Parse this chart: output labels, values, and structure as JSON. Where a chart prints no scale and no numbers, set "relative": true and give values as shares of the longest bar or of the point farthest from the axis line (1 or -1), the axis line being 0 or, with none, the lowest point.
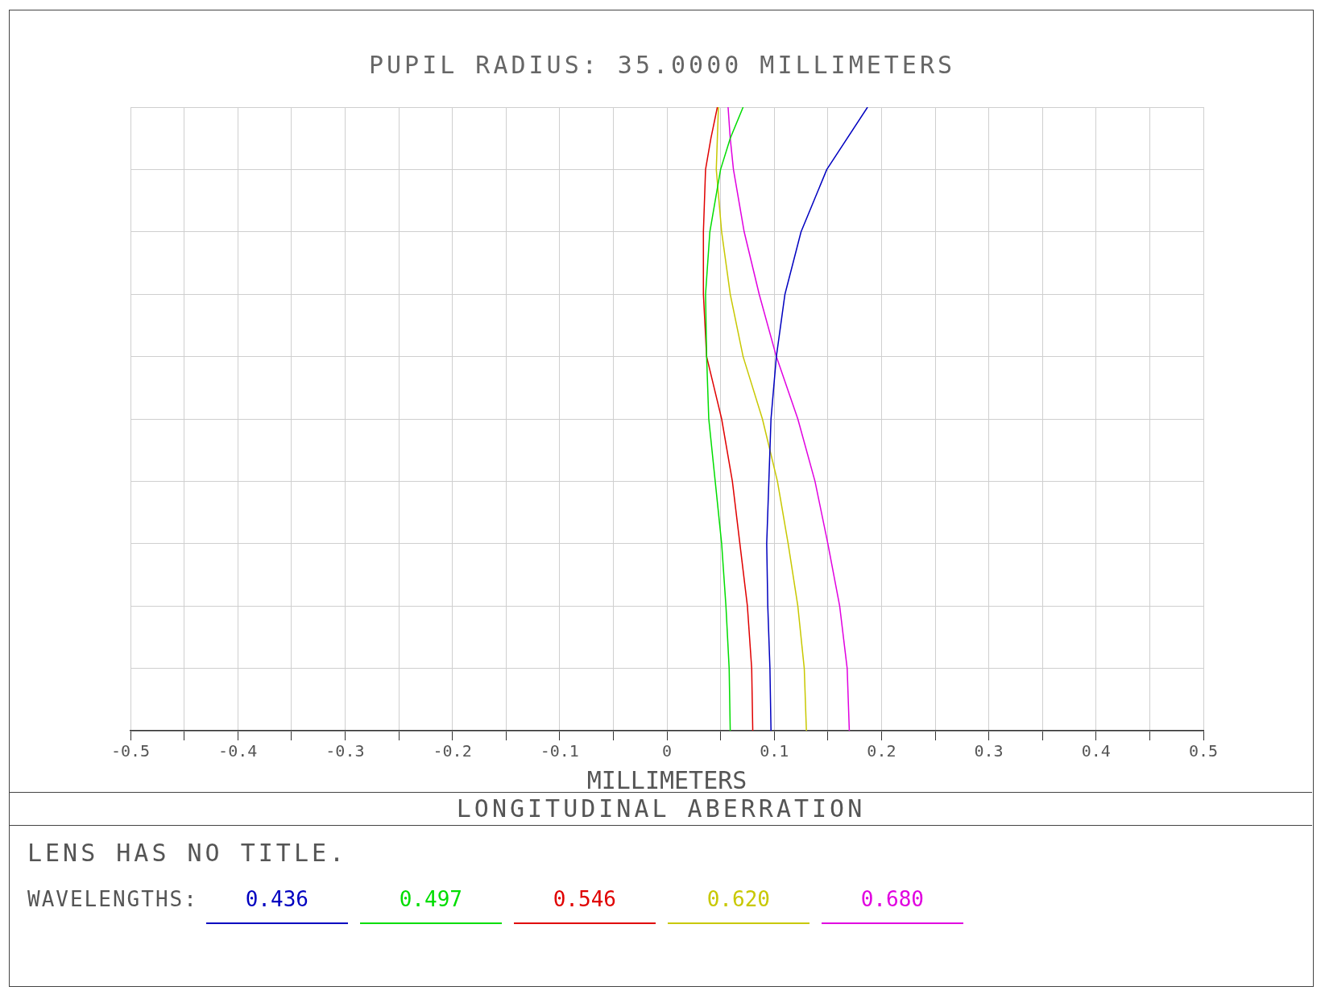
{
  "chart_data": {
    "type": "line",
    "title": "PUPIL RADIUS: 35.0000 MILLIMETERS",
    "xlabel": "MILLIMETERS",
    "relative": true,
    "xlim": [
      -0.5,
      0.5
    ],
    "xticks": [
      -0.5,
      {
        "value": -0.45,
        "label": null
      },
      -0.4,
      {
        "value": -0.35,
        "label": null
      },
      -0.3,
      {
        "value": -0.25,
        "label": null
      },
      -0.2,
      {
        "value": -0.15,
        "label": null
      },
      -0.1,
      {
        "value": -0.05,
        "label": null
      },
      0,
      {
        "value": 0.05,
        "label": null
      },
      0.1,
      {
        "value": 0.15,
        "label": null
      },
      0.2,
      {
        "value": 0.25,
        "label": null
      },
      0.3,
      {
        "value": 0.35,
        "label": null
      },
      0.4,
      {
        "value": 0.45,
        "label": null
      },
      0.5
    ],
    "grid": true,
    "legend": "bottom",
    "marker": "none",
    "line_style": "solid",
    "legend_title": "WAVELENGTHS:",
    "annotations": [
      "LONGITUDINAL ABERRATION",
      "LENS HAS NO TITLE."
    ],
    "series": [
      {
        "name": "0.436",
        "color": "#0000c0",
        "x": [
          0.097,
          0.096,
          0.094,
          0.093,
          0.095,
          0.097,
          0.102,
          0.11,
          0.125,
          0.149,
          0.187
        ],
        "values": [
          0,
          0.1,
          0.2,
          0.3,
          0.4,
          0.5,
          0.6,
          0.7,
          0.8,
          0.9,
          1
        ]
      },
      {
        "name": "0.497",
        "color": "#00dd00",
        "x": [
          0.059,
          0.058,
          0.055,
          0.051,
          0.045,
          0.039,
          0.037,
          0.036,
          0.04,
          0.05,
          0.059,
          0.071
        ],
        "values": [
          0,
          0.1,
          0.2,
          0.3,
          0.4,
          0.5,
          0.6,
          0.7,
          0.8,
          0.9,
          0.95,
          1
        ]
      },
      {
        "name": "0.546",
        "color": "#e00000",
        "x": [
          0.08,
          0.079,
          0.075,
          0.068,
          0.061,
          0.051,
          0.037,
          0.034,
          0.034,
          0.036,
          0.041,
          0.047
        ],
        "values": [
          0,
          0.1,
          0.2,
          0.3,
          0.4,
          0.5,
          0.6,
          0.7,
          0.8,
          0.9,
          0.95,
          1
        ]
      },
      {
        "name": "0.620",
        "color": "#c8c800",
        "x": [
          0.13,
          0.128,
          0.122,
          0.113,
          0.103,
          0.089,
          0.071,
          0.059,
          0.051,
          0.046,
          0.048
        ],
        "values": [
          0,
          0.1,
          0.2,
          0.3,
          0.4,
          0.5,
          0.6,
          0.7,
          0.8,
          0.9,
          1
        ]
      },
      {
        "name": "0.680",
        "color": "#e000e0",
        "x": [
          0.17,
          0.168,
          0.161,
          0.15,
          0.138,
          0.122,
          0.102,
          0.086,
          0.072,
          0.062,
          0.059,
          0.057
        ],
        "values": [
          0,
          0.1,
          0.2,
          0.3,
          0.4,
          0.5,
          0.6,
          0.7,
          0.8,
          0.9,
          0.95,
          1
        ]
      }
    ]
  }
}
